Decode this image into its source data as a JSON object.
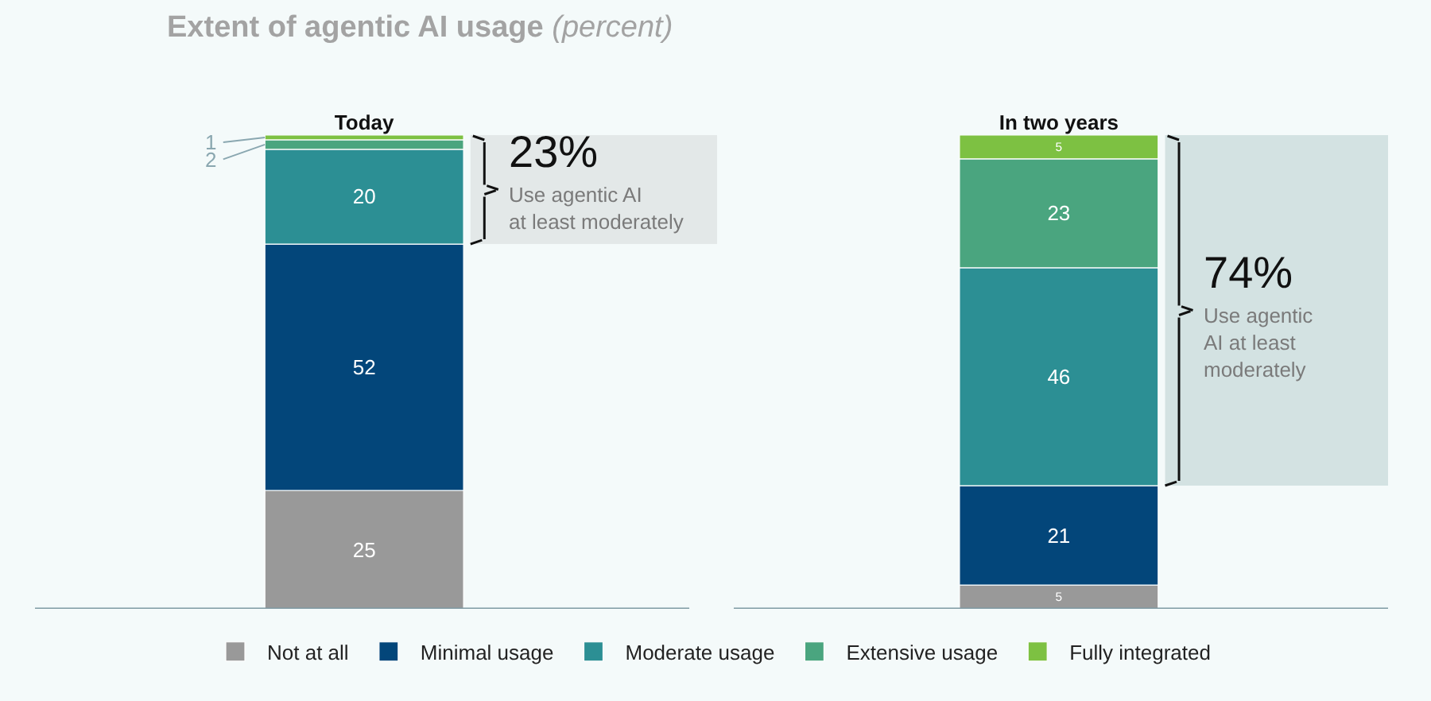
{
  "chart_data": {
    "type": "bar",
    "stacked": true,
    "title": "Extent of agentic AI usage",
    "subtitle": "(percent)",
    "categories": [
      "Today",
      "In two years"
    ],
    "ylim": [
      0,
      100
    ],
    "tick_labels": "x",
    "data_labels": true,
    "legend": "bottom",
    "grid": false,
    "series": [
      {
        "name": "Not at all",
        "color": "#999999",
        "values": [
          25,
          5
        ]
      },
      {
        "name": "Minimal usage",
        "color": "#03467a",
        "values": [
          52,
          21
        ]
      },
      {
        "name": "Moderate usage",
        "color": "#2c8f94",
        "values": [
          20,
          46
        ]
      },
      {
        "name": "Extensive usage",
        "color": "#4aa57f",
        "values": [
          2,
          23
        ]
      },
      {
        "name": "Fully integrated",
        "color": "#7dc142",
        "values": [
          1,
          5
        ]
      }
    ],
    "bands": [
      {
        "axis": "y",
        "from": 77,
        "to": 100,
        "label": "23%",
        "color": "#e3e8e8"
      },
      {
        "axis": "y",
        "from": 26,
        "to": 100,
        "label": "74%",
        "color": "#d3e2e2"
      }
    ],
    "annotations": [
      "Use agentic AI\nat least moderately",
      "Use agentic\nAI at least\nmoderately"
    ]
  }
}
